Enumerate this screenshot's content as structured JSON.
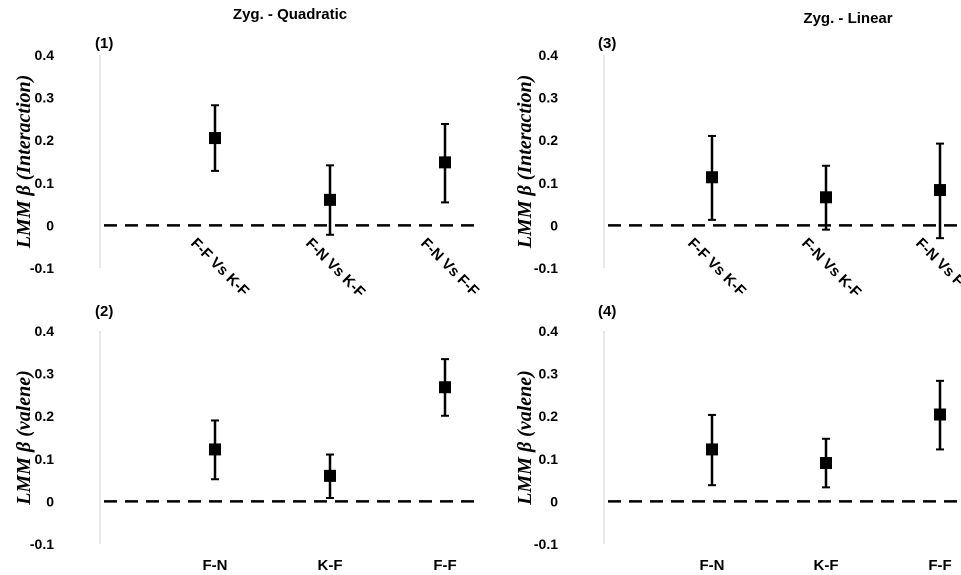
{
  "chart_data": [
    {
      "panel": "(1)",
      "title": "Zyg. - Quadratic",
      "type": "scatter",
      "error_bars": true,
      "ylabel": "LMM β (Interaction)",
      "ylim": [
        -0.1,
        0.4
      ],
      "yticks": [
        "-0.1",
        "0",
        "0.1",
        "0.2",
        "0.3",
        "0.4"
      ],
      "categories": [
        "F-F Vs K-F",
        "F-N Vs K-F",
        "F-N Vs F-F"
      ],
      "category_labels_rotated": true,
      "values": [
        0.205,
        0.06,
        0.148
      ],
      "err_low": [
        0.128,
        -0.022,
        0.054
      ],
      "err_high": [
        0.282,
        0.141,
        0.238
      ],
      "reference_line": 0
    },
    {
      "panel": "(2)",
      "title": "",
      "type": "scatter",
      "error_bars": true,
      "ylabel": "LMM β (valene)",
      "ylim": [
        -0.1,
        0.4
      ],
      "yticks": [
        "-0.1",
        "0",
        "0.1",
        "0.2",
        "0.3",
        "0.4"
      ],
      "categories": [
        "F-N",
        "K-F",
        "F-F"
      ],
      "category_labels_rotated": false,
      "values": [
        0.122,
        0.06,
        0.268
      ],
      "err_low": [
        0.052,
        0.008,
        0.201
      ],
      "err_high": [
        0.19,
        0.11,
        0.334
      ],
      "reference_line": 0
    },
    {
      "panel": "(3)",
      "title": "Zyg. - Linear",
      "type": "scatter",
      "error_bars": true,
      "ylabel": "LMM β (Interaction)",
      "ylim": [
        -0.1,
        0.4
      ],
      "yticks": [
        "-0.1",
        "0",
        "0.1",
        "0.2",
        "0.3",
        "0.4"
      ],
      "categories": [
        "F-F Vs K-F",
        "F-N Vs K-F",
        "F-N Vs F-F"
      ],
      "category_labels_rotated": true,
      "values": [
        0.113,
        0.066,
        0.083
      ],
      "err_low": [
        0.013,
        -0.01,
        -0.03
      ],
      "err_high": [
        0.21,
        0.14,
        0.192
      ],
      "reference_line": 0
    },
    {
      "panel": "(4)",
      "title": "",
      "type": "scatter",
      "error_bars": true,
      "ylabel": "LMM β (valene)",
      "ylim": [
        -0.1,
        0.4
      ],
      "yticks": [
        "-0.1",
        "0",
        "0.1",
        "0.2",
        "0.3",
        "0.4"
      ],
      "categories": [
        "F-N",
        "K-F",
        "F-F"
      ],
      "category_labels_rotated": false,
      "values": [
        0.122,
        0.09,
        0.204
      ],
      "err_low": [
        0.038,
        0.033,
        0.122
      ],
      "err_high": [
        0.203,
        0.147,
        0.283
      ],
      "reference_line": 0
    }
  ]
}
